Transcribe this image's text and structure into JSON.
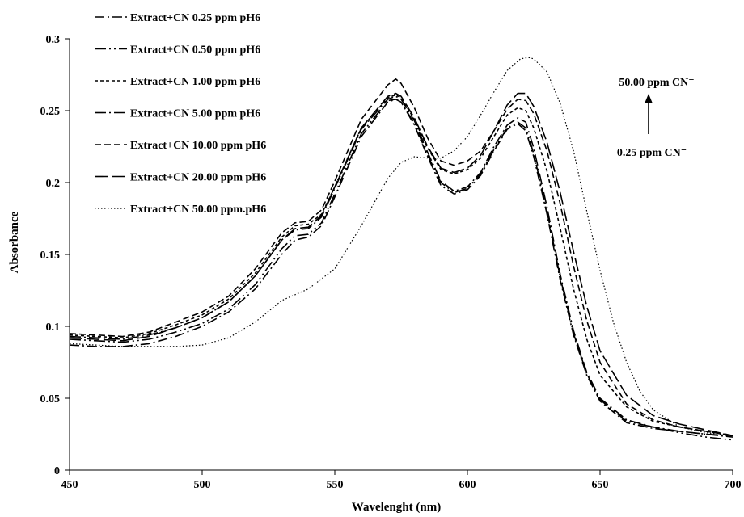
{
  "chart_data": {
    "type": "line",
    "title": "",
    "xlabel": "Wavelenght (nm)",
    "ylabel": "Absorbance",
    "xlim": [
      450,
      700
    ],
    "ylim": [
      0,
      0.3
    ],
    "xticks": [
      "450",
      "500",
      "550",
      "600",
      "650",
      "700"
    ],
    "yticks": [
      "0",
      "0.05",
      "0.1",
      "0.15",
      "0.2",
      "0.25",
      "0.3"
    ],
    "grid": false,
    "legend_position": "top-left",
    "annotations": {
      "top": "50.00 ppm CN⁻",
      "bottom": "0.25 ppm CN⁻",
      "arrow": "up"
    },
    "series": [
      {
        "name": "Extract+CN 0.25 ppm pH6",
        "dash": "12,4,2,4",
        "points": [
          [
            450,
            0.087
          ],
          [
            460,
            0.086
          ],
          [
            470,
            0.086
          ],
          [
            480,
            0.088
          ],
          [
            490,
            0.093
          ],
          [
            500,
            0.1
          ],
          [
            510,
            0.11
          ],
          [
            520,
            0.126
          ],
          [
            530,
            0.15
          ],
          [
            535,
            0.16
          ],
          [
            540,
            0.162
          ],
          [
            545,
            0.17
          ],
          [
            550,
            0.19
          ],
          [
            560,
            0.232
          ],
          [
            570,
            0.256
          ],
          [
            573,
            0.258
          ],
          [
            575,
            0.256
          ],
          [
            580,
            0.24
          ],
          [
            585,
            0.218
          ],
          [
            590,
            0.198
          ],
          [
            595,
            0.192
          ],
          [
            600,
            0.195
          ],
          [
            605,
            0.205
          ],
          [
            610,
            0.222
          ],
          [
            615,
            0.237
          ],
          [
            619,
            0.241
          ],
          [
            622,
            0.236
          ],
          [
            625,
            0.218
          ],
          [
            630,
            0.178
          ],
          [
            635,
            0.132
          ],
          [
            640,
            0.094
          ],
          [
            645,
            0.066
          ],
          [
            650,
            0.048
          ],
          [
            660,
            0.033
          ],
          [
            670,
            0.029
          ],
          [
            680,
            0.027
          ],
          [
            690,
            0.025
          ],
          [
            700,
            0.023
          ]
        ]
      },
      {
        "name": "Extract+CN 0.50 ppm pH6",
        "dash": "14,4,2,4,2,4",
        "points": [
          [
            450,
            0.091
          ],
          [
            460,
            0.09
          ],
          [
            470,
            0.089
          ],
          [
            480,
            0.091
          ],
          [
            490,
            0.096
          ],
          [
            500,
            0.102
          ],
          [
            510,
            0.112
          ],
          [
            520,
            0.129
          ],
          [
            530,
            0.154
          ],
          [
            535,
            0.163
          ],
          [
            540,
            0.164
          ],
          [
            545,
            0.172
          ],
          [
            550,
            0.192
          ],
          [
            560,
            0.234
          ],
          [
            570,
            0.257
          ],
          [
            573,
            0.258
          ],
          [
            575,
            0.256
          ],
          [
            580,
            0.241
          ],
          [
            585,
            0.219
          ],
          [
            590,
            0.2
          ],
          [
            595,
            0.193
          ],
          [
            600,
            0.196
          ],
          [
            605,
            0.206
          ],
          [
            610,
            0.223
          ],
          [
            615,
            0.238
          ],
          [
            619,
            0.242
          ],
          [
            622,
            0.238
          ],
          [
            625,
            0.22
          ],
          [
            630,
            0.18
          ],
          [
            635,
            0.134
          ],
          [
            640,
            0.095
          ],
          [
            645,
            0.067
          ],
          [
            650,
            0.049
          ],
          [
            660,
            0.034
          ],
          [
            670,
            0.03
          ],
          [
            680,
            0.026
          ],
          [
            690,
            0.023
          ],
          [
            700,
            0.021
          ]
        ]
      },
      {
        "name": "Extract+CN 1.00 ppm pH6",
        "dash": "4,3",
        "points": [
          [
            450,
            0.094
          ],
          [
            460,
            0.093
          ],
          [
            470,
            0.092
          ],
          [
            480,
            0.095
          ],
          [
            490,
            0.101
          ],
          [
            500,
            0.108
          ],
          [
            510,
            0.119
          ],
          [
            520,
            0.137
          ],
          [
            530,
            0.162
          ],
          [
            535,
            0.17
          ],
          [
            540,
            0.171
          ],
          [
            545,
            0.178
          ],
          [
            550,
            0.197
          ],
          [
            560,
            0.238
          ],
          [
            570,
            0.259
          ],
          [
            573,
            0.261
          ],
          [
            575,
            0.259
          ],
          [
            580,
            0.244
          ],
          [
            585,
            0.224
          ],
          [
            590,
            0.209
          ],
          [
            595,
            0.206
          ],
          [
            600,
            0.209
          ],
          [
            605,
            0.217
          ],
          [
            610,
            0.232
          ],
          [
            615,
            0.247
          ],
          [
            619,
            0.252
          ],
          [
            622,
            0.25
          ],
          [
            625,
            0.238
          ],
          [
            630,
            0.208
          ],
          [
            635,
            0.168
          ],
          [
            640,
            0.126
          ],
          [
            645,
            0.091
          ],
          [
            650,
            0.066
          ],
          [
            660,
            0.044
          ],
          [
            670,
            0.034
          ],
          [
            680,
            0.03
          ],
          [
            690,
            0.027
          ],
          [
            700,
            0.024
          ]
        ]
      },
      {
        "name": "Extract+CN 5.00 ppm pH6",
        "dash": "14,4,2,4",
        "points": [
          [
            450,
            0.093
          ],
          [
            460,
            0.092
          ],
          [
            470,
            0.091
          ],
          [
            480,
            0.094
          ],
          [
            490,
            0.099
          ],
          [
            500,
            0.106
          ],
          [
            510,
            0.117
          ],
          [
            520,
            0.135
          ],
          [
            530,
            0.16
          ],
          [
            535,
            0.167
          ],
          [
            540,
            0.168
          ],
          [
            545,
            0.176
          ],
          [
            550,
            0.196
          ],
          [
            560,
            0.237
          ],
          [
            570,
            0.258
          ],
          [
            573,
            0.26
          ],
          [
            575,
            0.258
          ],
          [
            580,
            0.243
          ],
          [
            585,
            0.221
          ],
          [
            590,
            0.201
          ],
          [
            595,
            0.194
          ],
          [
            600,
            0.197
          ],
          [
            605,
            0.207
          ],
          [
            610,
            0.225
          ],
          [
            615,
            0.24
          ],
          [
            619,
            0.245
          ],
          [
            622,
            0.242
          ],
          [
            625,
            0.224
          ],
          [
            630,
            0.183
          ],
          [
            635,
            0.136
          ],
          [
            640,
            0.097
          ],
          [
            645,
            0.068
          ],
          [
            650,
            0.05
          ],
          [
            660,
            0.035
          ],
          [
            670,
            0.03
          ],
          [
            680,
            0.027
          ],
          [
            690,
            0.025
          ],
          [
            700,
            0.024
          ]
        ]
      },
      {
        "name": "Extract+CN 10.00 ppm pH6",
        "dash": "8,4",
        "points": [
          [
            450,
            0.095
          ],
          [
            460,
            0.094
          ],
          [
            470,
            0.093
          ],
          [
            480,
            0.096
          ],
          [
            490,
            0.103
          ],
          [
            500,
            0.11
          ],
          [
            510,
            0.121
          ],
          [
            520,
            0.14
          ],
          [
            530,
            0.165
          ],
          [
            535,
            0.172
          ],
          [
            540,
            0.173
          ],
          [
            545,
            0.181
          ],
          [
            550,
            0.201
          ],
          [
            560,
            0.244
          ],
          [
            570,
            0.268
          ],
          [
            573,
            0.272
          ],
          [
            575,
            0.269
          ],
          [
            580,
            0.252
          ],
          [
            585,
            0.231
          ],
          [
            590,
            0.215
          ],
          [
            595,
            0.212
          ],
          [
            600,
            0.215
          ],
          [
            605,
            0.222
          ],
          [
            610,
            0.236
          ],
          [
            615,
            0.251
          ],
          [
            619,
            0.258
          ],
          [
            622,
            0.257
          ],
          [
            625,
            0.248
          ],
          [
            630,
            0.222
          ],
          [
            635,
            0.185
          ],
          [
            640,
            0.142
          ],
          [
            645,
            0.104
          ],
          [
            650,
            0.075
          ],
          [
            660,
            0.046
          ],
          [
            670,
            0.035
          ],
          [
            680,
            0.03
          ],
          [
            690,
            0.027
          ],
          [
            700,
            0.024
          ]
        ]
      },
      {
        "name": "Extract+CN 20.00 ppm pH6",
        "dash": "16,5",
        "points": [
          [
            450,
            0.092
          ],
          [
            460,
            0.091
          ],
          [
            470,
            0.09
          ],
          [
            480,
            0.093
          ],
          [
            490,
            0.099
          ],
          [
            500,
            0.106
          ],
          [
            510,
            0.117
          ],
          [
            520,
            0.135
          ],
          [
            530,
            0.16
          ],
          [
            535,
            0.168
          ],
          [
            540,
            0.169
          ],
          [
            545,
            0.177
          ],
          [
            550,
            0.197
          ],
          [
            560,
            0.238
          ],
          [
            570,
            0.26
          ],
          [
            573,
            0.262
          ],
          [
            575,
            0.26
          ],
          [
            580,
            0.245
          ],
          [
            585,
            0.225
          ],
          [
            590,
            0.21
          ],
          [
            595,
            0.207
          ],
          [
            600,
            0.21
          ],
          [
            605,
            0.219
          ],
          [
            610,
            0.236
          ],
          [
            615,
            0.254
          ],
          [
            619,
            0.262
          ],
          [
            622,
            0.262
          ],
          [
            625,
            0.253
          ],
          [
            630,
            0.228
          ],
          [
            635,
            0.193
          ],
          [
            640,
            0.152
          ],
          [
            645,
            0.114
          ],
          [
            650,
            0.083
          ],
          [
            660,
            0.052
          ],
          [
            670,
            0.038
          ],
          [
            680,
            0.032
          ],
          [
            690,
            0.028
          ],
          [
            700,
            0.024
          ]
        ]
      },
      {
        "name": "Extract+CN 50.00 ppm.pH6",
        "dash": "1.5,2.5",
        "points": [
          [
            450,
            0.088
          ],
          [
            460,
            0.087
          ],
          [
            470,
            0.086
          ],
          [
            480,
            0.086
          ],
          [
            490,
            0.086
          ],
          [
            500,
            0.087
          ],
          [
            510,
            0.092
          ],
          [
            520,
            0.103
          ],
          [
            530,
            0.118
          ],
          [
            540,
            0.126
          ],
          [
            550,
            0.14
          ],
          [
            560,
            0.17
          ],
          [
            570,
            0.203
          ],
          [
            575,
            0.214
          ],
          [
            580,
            0.218
          ],
          [
            585,
            0.217
          ],
          [
            590,
            0.217
          ],
          [
            595,
            0.222
          ],
          [
            600,
            0.232
          ],
          [
            605,
            0.247
          ],
          [
            610,
            0.263
          ],
          [
            615,
            0.278
          ],
          [
            620,
            0.286
          ],
          [
            623,
            0.287
          ],
          [
            625,
            0.286
          ],
          [
            630,
            0.277
          ],
          [
            635,
            0.255
          ],
          [
            640,
            0.222
          ],
          [
            645,
            0.18
          ],
          [
            650,
            0.139
          ],
          [
            655,
            0.103
          ],
          [
            660,
            0.075
          ],
          [
            665,
            0.055
          ],
          [
            670,
            0.042
          ],
          [
            680,
            0.03
          ],
          [
            690,
            0.026
          ],
          [
            700,
            0.024
          ]
        ]
      }
    ]
  }
}
